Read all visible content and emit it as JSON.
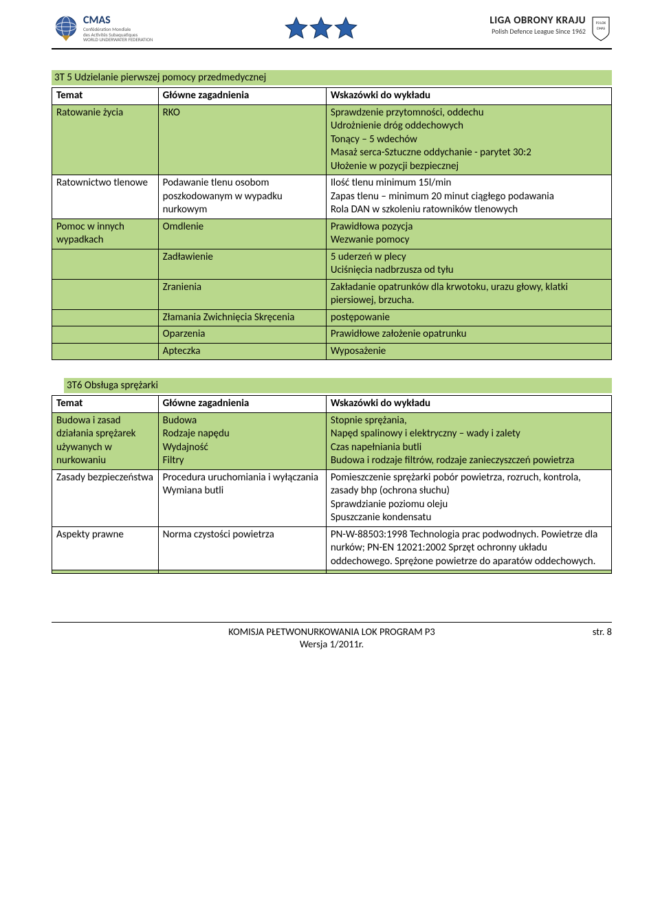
{
  "header": {
    "cmas_name": "CMAS",
    "cmas_sub1": "Confédération Mondiale",
    "cmas_sub2": "des Activités Subaquatiques",
    "cmas_sub3": "WORLD UNDERWATER FEDERATION",
    "lok_title": "LIGA OBRONY KRAJU",
    "lok_sub": "Polish Defence League Since 1962"
  },
  "section1": {
    "title": "3T 5 Udzielanie pierwszej pomocy przedmedycznej",
    "header_row": [
      "Temat",
      "Główne zagadnienia",
      "Wskazówki do wykładu"
    ],
    "rows": [
      {
        "c1": "Ratowanie życia",
        "c2": "RKO",
        "c3": "Sprawdzenie przytomności, oddechu\nUdrożnienie dróg oddechowych\nTonący – 5 wdechów\nMasaż serca-Sztuczne oddychanie  - parytet 30:2\nUłożenie w pozycji bezpiecznej",
        "green": true
      },
      {
        "c1": "Ratownictwo tlenowe",
        "c2": "Podawanie tlenu osobom poszkodowanym w wypadku nurkowym",
        "c3": "Ilość tlenu minimum 15l/min\nZapas tlenu – minimum 20 minut ciągłego podawania\nRola DAN w szkoleniu ratowników tlenowych",
        "green": false
      },
      {
        "c1": "Pomoc w innych wypadkach",
        "c2": "Omdlenie",
        "c3": "Prawidłowa pozycja\nWezwanie pomocy",
        "green": true
      },
      {
        "c1": "",
        "c2": "Zadławienie",
        "c3": "5 uderzeń w plecy\nUciśnięcia nadbrzusza od tyłu",
        "green": true
      },
      {
        "c1": "",
        "c2": "Zranienia",
        "c3": "Zakładanie opatrunków dla krwotoku, urazu głowy, klatki piersiowej, brzucha.",
        "green": true
      },
      {
        "c1": "",
        "c2": "Złamania Zwichnięcia Skręcenia",
        "c3": "postępowanie",
        "green": true
      },
      {
        "c1": "",
        "c2": "Oparzenia",
        "c3": "Prawidłowe założenie opatrunku",
        "green": true
      },
      {
        "c1": "",
        "c2": "Apteczka",
        "c3": "Wyposażenie",
        "green": true
      }
    ]
  },
  "section2": {
    "title": "3T6 Obsługa sprężarki",
    "header_row": [
      "Temat",
      "Główne zagadnienia",
      "Wskazówki do wykładu"
    ],
    "rows": [
      {
        "c1": "Budowa i zasad działania sprężarek używanych w nurkowaniu",
        "c2": "Budowa\nRodzaje napędu\nWydajność\nFiltry",
        "c3": "Stopnie sprężania,\nNapęd spalinowy i elektryczny – wady i zalety\nCzas napełniania butli\nBudowa i rodzaje filtrów, rodzaje zanieczyszczeń powietrza",
        "green": true
      },
      {
        "c1": "Zasady bezpieczeństwa",
        "c2": "Procedura uruchomiania i wyłączania\nWymiana butli",
        "c3": "Pomieszczenie sprężarki pobór powietrza, rozruch, kontrola, zasady bhp (ochrona słuchu)\nSprawdzianie poziomu oleju\nSpuszczanie kondensatu",
        "green": false
      },
      {
        "c1": "Aspekty prawne",
        "c2": "Norma czystości powietrza",
        "c3": "PN-W-88503:1998 Technologia prac podwodnych. Powietrze dla nurków; PN-EN 12021:2002 Sprzęt ochronny układu oddechowego. Sprężone powietrze do aparatów oddechowych.",
        "green": false
      },
      {
        "c1": "",
        "c2": "",
        "c3": "",
        "green": true
      }
    ]
  },
  "footer": {
    "line1": "KOMISJA  PŁETWONURKOWANIA  LOK PROGRAM P3",
    "line2": "Wersja 1/2011r.",
    "page": "str. 8"
  },
  "colors": {
    "green": "#b9d88c",
    "star": "#2b5fa8"
  }
}
